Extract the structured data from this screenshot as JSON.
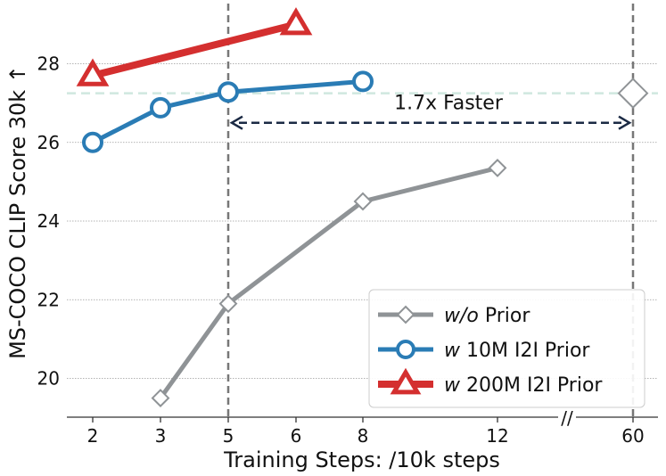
{
  "chart_data": {
    "type": "line",
    "title": "",
    "xlabel": "Training Steps: /10k steps",
    "ylabel": "MS-COCO CLIP Score 30k ↑",
    "x_categories": [
      "2",
      "3",
      "5",
      "6",
      "8",
      "12",
      "60"
    ],
    "x_axis_break": "//",
    "ylim": [
      19,
      29.2
    ],
    "yticks": [
      "20",
      "22",
      "24",
      "26",
      "28"
    ],
    "grid": "horizontal",
    "legend_position": "bottom-right",
    "series": [
      {
        "name_prefix": "w/o",
        "name_suffix": " Prior",
        "name": "w/o Prior",
        "color": "#8f9396",
        "marker": "diamond",
        "x": [
          "3",
          "5",
          "8",
          "12",
          "60"
        ],
        "y": [
          19.5,
          21.9,
          24.5,
          25.35,
          27.25
        ]
      },
      {
        "name_prefix": "w",
        "name_suffix": " 10M I2I Prior",
        "name": "w 10M I2I Prior",
        "color": "#2a7cb5",
        "marker": "circle",
        "x": [
          "2",
          "3",
          "5",
          "8"
        ],
        "y": [
          26.0,
          26.88,
          27.28,
          27.55
        ]
      },
      {
        "name_prefix": "w",
        "name_suffix": " 200M I2I Prior",
        "name": "w 200M I2I Prior",
        "color": "#d42f2f",
        "marker": "triangle",
        "x": [
          "2",
          "6"
        ],
        "y": [
          27.7,
          29.0
        ]
      }
    ],
    "reference_lines": {
      "vertical_at": [
        "5",
        "60"
      ],
      "horizontal_at": 27.25,
      "horizontal_color": "#cfe8df"
    },
    "annotation": {
      "text": "1.7x Faster",
      "arrow_from": "5",
      "arrow_to": "60",
      "arrow_y": 26.5,
      "color": "#1b2a44"
    }
  }
}
